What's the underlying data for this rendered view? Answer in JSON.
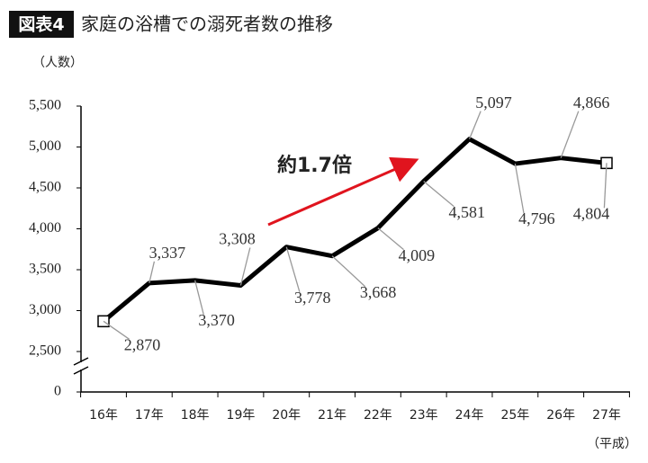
{
  "chart_data": {
    "type": "line",
    "badge": "図表4",
    "title": "家庭の浴槽での溺死者数の推移",
    "y_label": "（人数）",
    "x_label": "（平成）",
    "annotation": "約1.7倍",
    "categories": [
      "16年",
      "17年",
      "18年",
      "19年",
      "20年",
      "21年",
      "22年",
      "23年",
      "24年",
      "25年",
      "26年",
      "27年"
    ],
    "values": [
      2870,
      3337,
      3370,
      3308,
      3778,
      3668,
      4009,
      4581,
      5097,
      4796,
      4866,
      4804
    ],
    "value_labels": [
      "2,870",
      "3,337",
      "3,370",
      "3,308",
      "3,778",
      "3,668",
      "4,009",
      "4,581",
      "5,097",
      "4,796",
      "4,866",
      "4,804"
    ],
    "color": "#000000",
    "ylim": [
      0,
      5500
    ],
    "y_break": [
      0,
      2500
    ],
    "yticks": [
      0,
      {
        "value": 2500,
        "label": "2,500"
      },
      {
        "value": 3000,
        "label": "3,000"
      },
      {
        "value": 3500,
        "label": "3,500"
      },
      {
        "value": 4000,
        "label": "4,000"
      },
      {
        "value": 4500,
        "label": "4,500"
      },
      {
        "value": 5000,
        "label": "5,000"
      },
      {
        "value": 5500,
        "label": "5,500"
      }
    ]
  }
}
